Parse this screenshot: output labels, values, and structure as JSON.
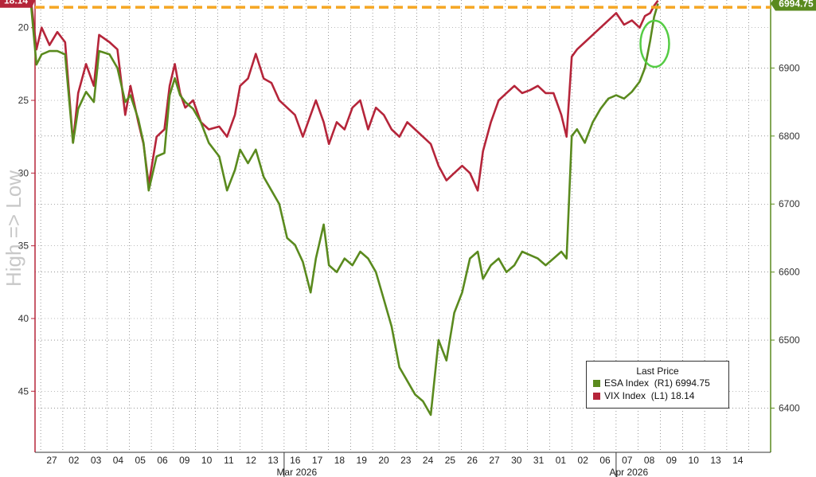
{
  "chart_data": {
    "type": "line",
    "x_dates": [
      "27",
      "02",
      "03",
      "04",
      "05",
      "06",
      "09",
      "10",
      "11",
      "12",
      "13",
      "16",
      "17",
      "18",
      "19",
      "20",
      "23",
      "24",
      "25",
      "26",
      "27",
      "30",
      "31",
      "01",
      "02",
      "06",
      "07",
      "08",
      "09",
      "10",
      "13",
      "14"
    ],
    "months": [
      {
        "label": "Mar 2026",
        "at": "16"
      },
      {
        "label": "Apr 2026",
        "at": "07"
      }
    ],
    "left_axis": {
      "label": "High => Low",
      "inverted": true,
      "ticks": [
        20,
        25,
        30,
        35,
        40,
        45
      ],
      "range": [
        18.1,
        49.2
      ]
    },
    "right_axis": {
      "ticks": [
        6400,
        6500,
        6600,
        6700,
        6800,
        6900
      ],
      "range": [
        6335,
        7000
      ]
    },
    "last_price_flags": {
      "left": "18.14",
      "right": "6994.75"
    },
    "reference_line": {
      "axis": "left",
      "value": 18.6,
      "color": "#f5a623",
      "style": "dashed"
    },
    "annotation": {
      "type": "circle",
      "color": "#55cc44",
      "note": "latest points"
    },
    "legend": {
      "title": "Last Price",
      "entries": [
        {
          "name": "ESA Index",
          "axis_tag": "(R1)",
          "last": "6994.75",
          "color": "#5a8a1e"
        },
        {
          "name": "VIX Index",
          "axis_tag": "(L1)",
          "last": "18.14",
          "color": "#b5253a"
        }
      ]
    },
    "series": [
      {
        "name": "VIX Index",
        "axis": "left",
        "color": "#b5253a",
        "points": [
          [
            0,
            18.2
          ],
          [
            0.2,
            21.5
          ],
          [
            0.4,
            20.0
          ],
          [
            0.7,
            21.2
          ],
          [
            1.0,
            20.3
          ],
          [
            1.3,
            21.0
          ],
          [
            1.6,
            27.9
          ],
          [
            1.8,
            24.5
          ],
          [
            2.1,
            22.5
          ],
          [
            2.4,
            24.0
          ],
          [
            2.6,
            20.5
          ],
          [
            3.0,
            21.0
          ],
          [
            3.3,
            21.5
          ],
          [
            3.6,
            26.0
          ],
          [
            3.8,
            24.0
          ],
          [
            4.1,
            26.5
          ],
          [
            4.3,
            28.0
          ],
          [
            4.5,
            30.8
          ],
          [
            4.8,
            27.5
          ],
          [
            5.1,
            27.0
          ],
          [
            5.3,
            24.0
          ],
          [
            5.5,
            22.5
          ],
          [
            5.7,
            24.5
          ],
          [
            5.9,
            25.5
          ],
          [
            6.2,
            25.0
          ],
          [
            6.5,
            26.5
          ],
          [
            6.8,
            27.0
          ],
          [
            7.2,
            26.8
          ],
          [
            7.5,
            27.5
          ],
          [
            7.8,
            26.0
          ],
          [
            8.0,
            24.0
          ],
          [
            8.3,
            23.5
          ],
          [
            8.6,
            21.8
          ],
          [
            8.9,
            23.5
          ],
          [
            9.2,
            23.8
          ],
          [
            9.5,
            25.0
          ],
          [
            9.8,
            25.5
          ],
          [
            10.1,
            26.0
          ],
          [
            10.4,
            27.5
          ],
          [
            10.7,
            26.0
          ],
          [
            10.9,
            25.0
          ],
          [
            11.2,
            26.5
          ],
          [
            11.4,
            28.0
          ],
          [
            11.7,
            26.5
          ],
          [
            12.0,
            27.0
          ],
          [
            12.3,
            25.5
          ],
          [
            12.6,
            25.0
          ],
          [
            12.9,
            27.0
          ],
          [
            13.2,
            25.5
          ],
          [
            13.5,
            26.0
          ],
          [
            13.8,
            27.0
          ],
          [
            14.1,
            27.5
          ],
          [
            14.4,
            26.5
          ],
          [
            14.7,
            27.0
          ],
          [
            15.0,
            27.5
          ],
          [
            15.3,
            28.0
          ],
          [
            15.6,
            29.5
          ],
          [
            15.9,
            30.5
          ],
          [
            16.2,
            30.0
          ],
          [
            16.5,
            29.5
          ],
          [
            16.8,
            30.0
          ],
          [
            17.1,
            31.2
          ],
          [
            17.3,
            28.5
          ],
          [
            17.6,
            26.5
          ],
          [
            17.9,
            25.0
          ],
          [
            18.2,
            24.5
          ],
          [
            18.5,
            24.0
          ],
          [
            18.8,
            24.5
          ],
          [
            19.1,
            24.3
          ],
          [
            19.4,
            24.0
          ],
          [
            19.7,
            24.5
          ],
          [
            20.0,
            24.5
          ],
          [
            20.3,
            26.0
          ],
          [
            20.5,
            27.5
          ],
          [
            20.7,
            22.0
          ],
          [
            20.9,
            21.5
          ],
          [
            21.2,
            21.0
          ],
          [
            21.5,
            20.5
          ],
          [
            21.8,
            20.0
          ],
          [
            22.1,
            19.5
          ],
          [
            22.4,
            19.0
          ],
          [
            22.7,
            19.8
          ],
          [
            23.0,
            19.5
          ],
          [
            23.3,
            20.0
          ],
          [
            23.5,
            19.2
          ],
          [
            23.7,
            19.0
          ],
          [
            23.85,
            18.5
          ],
          [
            24.0,
            18.14
          ]
        ]
      },
      {
        "name": "ESA Index",
        "axis": "right",
        "color": "#5a8a1e",
        "points": [
          [
            0,
            6990
          ],
          [
            0.2,
            6905
          ],
          [
            0.4,
            6920
          ],
          [
            0.7,
            6925
          ],
          [
            1.0,
            6925
          ],
          [
            1.3,
            6920
          ],
          [
            1.6,
            6790
          ],
          [
            1.8,
            6840
          ],
          [
            2.1,
            6865
          ],
          [
            2.4,
            6850
          ],
          [
            2.6,
            6925
          ],
          [
            3.0,
            6920
          ],
          [
            3.3,
            6900
          ],
          [
            3.6,
            6850
          ],
          [
            3.8,
            6860
          ],
          [
            4.1,
            6825
          ],
          [
            4.3,
            6790
          ],
          [
            4.5,
            6720
          ],
          [
            4.8,
            6770
          ],
          [
            5.1,
            6775
          ],
          [
            5.3,
            6860
          ],
          [
            5.5,
            6885
          ],
          [
            5.7,
            6860
          ],
          [
            5.9,
            6850
          ],
          [
            6.2,
            6840
          ],
          [
            6.5,
            6820
          ],
          [
            6.8,
            6790
          ],
          [
            7.2,
            6770
          ],
          [
            7.5,
            6720
          ],
          [
            7.8,
            6750
          ],
          [
            8.0,
            6780
          ],
          [
            8.3,
            6760
          ],
          [
            8.6,
            6780
          ],
          [
            8.9,
            6740
          ],
          [
            9.2,
            6720
          ],
          [
            9.5,
            6700
          ],
          [
            9.8,
            6650
          ],
          [
            10.1,
            6640
          ],
          [
            10.4,
            6615
          ],
          [
            10.7,
            6570
          ],
          [
            10.9,
            6620
          ],
          [
            11.2,
            6670
          ],
          [
            11.4,
            6610
          ],
          [
            11.7,
            6600
          ],
          [
            12.0,
            6620
          ],
          [
            12.3,
            6610
          ],
          [
            12.6,
            6630
          ],
          [
            12.9,
            6620
          ],
          [
            13.2,
            6600
          ],
          [
            13.5,
            6560
          ],
          [
            13.8,
            6520
          ],
          [
            14.1,
            6460
          ],
          [
            14.4,
            6440
          ],
          [
            14.7,
            6420
          ],
          [
            15.0,
            6410
          ],
          [
            15.3,
            6390
          ],
          [
            15.6,
            6500
          ],
          [
            15.9,
            6470
          ],
          [
            16.2,
            6540
          ],
          [
            16.5,
            6570
          ],
          [
            16.8,
            6620
          ],
          [
            17.1,
            6630
          ],
          [
            17.3,
            6590
          ],
          [
            17.6,
            6610
          ],
          [
            17.9,
            6620
          ],
          [
            18.2,
            6600
          ],
          [
            18.5,
            6610
          ],
          [
            18.8,
            6630
          ],
          [
            19.1,
            6625
          ],
          [
            19.4,
            6620
          ],
          [
            19.7,
            6610
          ],
          [
            20.0,
            6620
          ],
          [
            20.3,
            6630
          ],
          [
            20.5,
            6620
          ],
          [
            20.7,
            6800
          ],
          [
            20.9,
            6810
          ],
          [
            21.2,
            6790
          ],
          [
            21.5,
            6820
          ],
          [
            21.8,
            6840
          ],
          [
            22.1,
            6855
          ],
          [
            22.4,
            6860
          ],
          [
            22.7,
            6855
          ],
          [
            23.0,
            6865
          ],
          [
            23.3,
            6880
          ],
          [
            23.5,
            6900
          ],
          [
            23.7,
            6940
          ],
          [
            23.85,
            6975
          ],
          [
            24.0,
            6994.75
          ]
        ]
      }
    ]
  }
}
